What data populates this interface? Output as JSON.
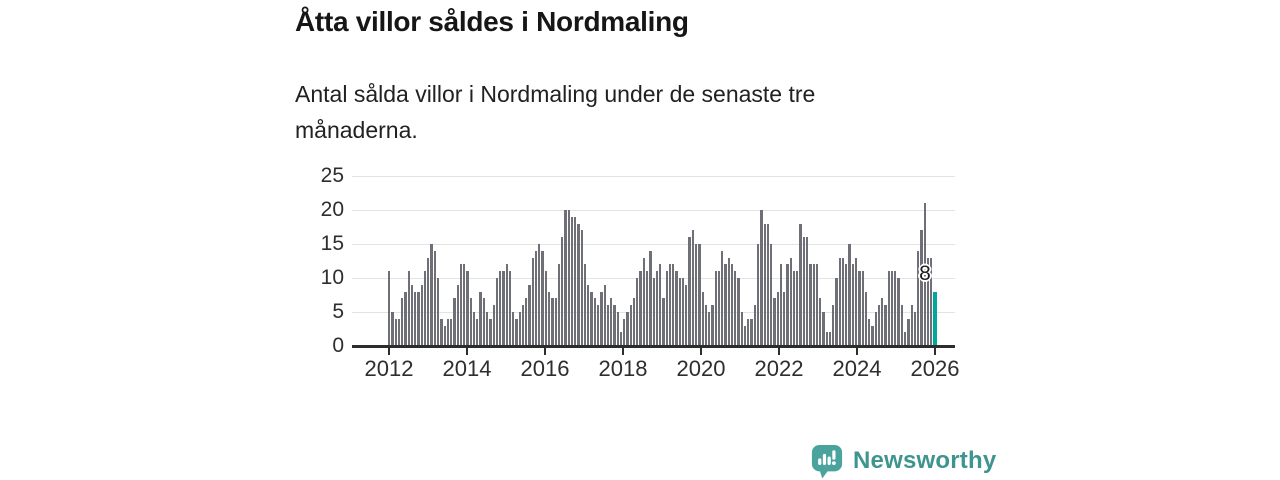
{
  "header": {
    "title": "Åtta villor såldes i Nordmaling",
    "subtitle": "Antal sålda villor i Nordmaling under de senaste tre månaderna."
  },
  "chart_data": {
    "type": "bar",
    "title": "Åtta villor såldes i Nordmaling",
    "subtitle": "Antal sålda villor i Nordmaling under de senaste tre månaderna.",
    "xlabel": "",
    "ylabel": "",
    "x_start": "2012-01",
    "x_end": "2025-12",
    "x_tick_labels": [
      "2012",
      "2014",
      "2016",
      "2018",
      "2020",
      "2022",
      "2024",
      "2026"
    ],
    "y_tick_labels": [
      "0",
      "5",
      "10",
      "15",
      "20",
      "25"
    ],
    "ylim": [
      0,
      25
    ],
    "grid": "horizontal",
    "legend": "none",
    "bar_color": "#6f6f77",
    "highlight_color": "#00a79c",
    "highlight_index_from_end": 1,
    "highlight_value": 8,
    "highlight_label": "8",
    "values": [
      11,
      5,
      4,
      4,
      7,
      8,
      11,
      9,
      8,
      8,
      9,
      11,
      13,
      15,
      14,
      10,
      4,
      3,
      4,
      4,
      7,
      9,
      12,
      12,
      11,
      7,
      5,
      4,
      8,
      7,
      5,
      4,
      6,
      10,
      11,
      11,
      12,
      11,
      5,
      4,
      5,
      6,
      7,
      9,
      13,
      14,
      15,
      14,
      11,
      8,
      7,
      7,
      12,
      16,
      20,
      20,
      19,
      19,
      18,
      17,
      12,
      9,
      8,
      7,
      6,
      8,
      9,
      6,
      7,
      6,
      5,
      2,
      4,
      5,
      6,
      7,
      10,
      11,
      13,
      11,
      14,
      10,
      11,
      12,
      7,
      11,
      12,
      12,
      11,
      10,
      10,
      9,
      16,
      17,
      15,
      15,
      8,
      6,
      5,
      6,
      11,
      11,
      14,
      12,
      13,
      12,
      11,
      10,
      5,
      3,
      4,
      4,
      6,
      15,
      20,
      18,
      18,
      15,
      7,
      8,
      12,
      8,
      12,
      13,
      11,
      11,
      18,
      16,
      16,
      12,
      12,
      12,
      7,
      5,
      2,
      2,
      6,
      10,
      13,
      13,
      12,
      15,
      12,
      13,
      11,
      11,
      8,
      4,
      3,
      5,
      6,
      7,
      6,
      11,
      11,
      11,
      10,
      6,
      2,
      4,
      6,
      5,
      14,
      17,
      21,
      13,
      13,
      8
    ]
  },
  "footer": {
    "brand": "Newsworthy"
  },
  "colors": {
    "accent_teal": "#00a79c",
    "bar_gray": "#6f6f77",
    "brand_teal": "#3e948e",
    "title_text": "#161616",
    "axis_text": "#2e2e2e",
    "gridline": "#e3e3e3",
    "axis_line": "#2d2d2d"
  }
}
